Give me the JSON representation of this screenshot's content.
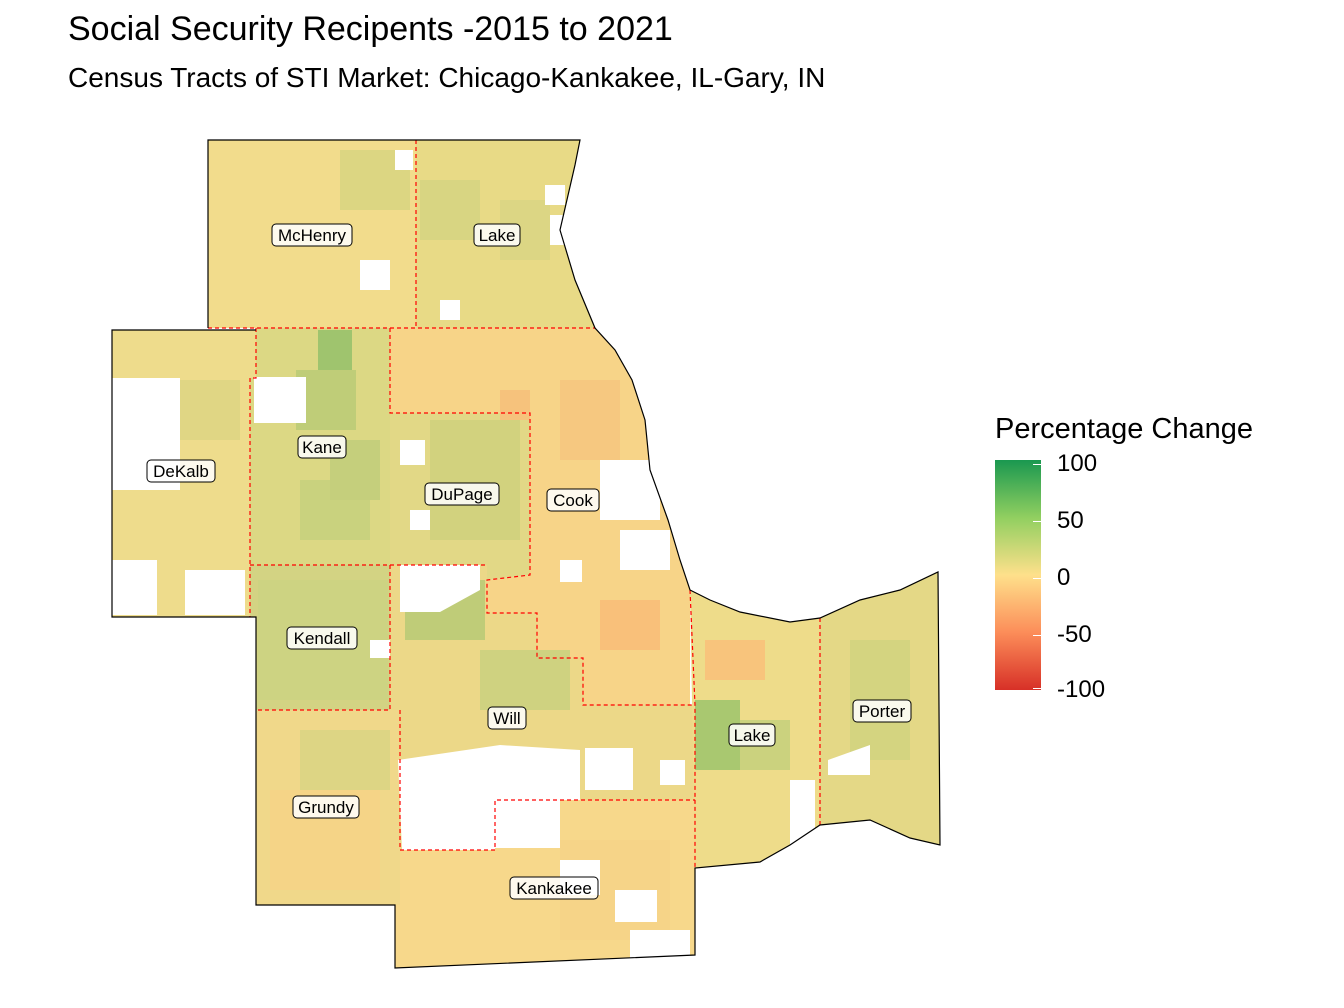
{
  "title": "Social Security Recipents -2015 to 2021",
  "subtitle": "Census Tracts of STI Market: Chicago-Kankakee, IL-Gary, IN",
  "legend": {
    "title": "Percentage Change",
    "ticks": [
      "100",
      "50",
      "0",
      "-50",
      "-100"
    ],
    "colors": {
      "high": "#1a9850",
      "mid_high": "#91cf60",
      "mid": "#fee08b",
      "mid_low": "#fc8d59",
      "low": "#d73027"
    }
  },
  "counties": [
    "McHenry",
    "Lake",
    "DeKalb",
    "Kane",
    "DuPage",
    "Cook",
    "Kendall",
    "Will",
    "Grundy",
    "Kankakee",
    "Lake",
    "Porter"
  ],
  "colors": {
    "state_border": "#ff0000",
    "coast": "#000000"
  }
}
